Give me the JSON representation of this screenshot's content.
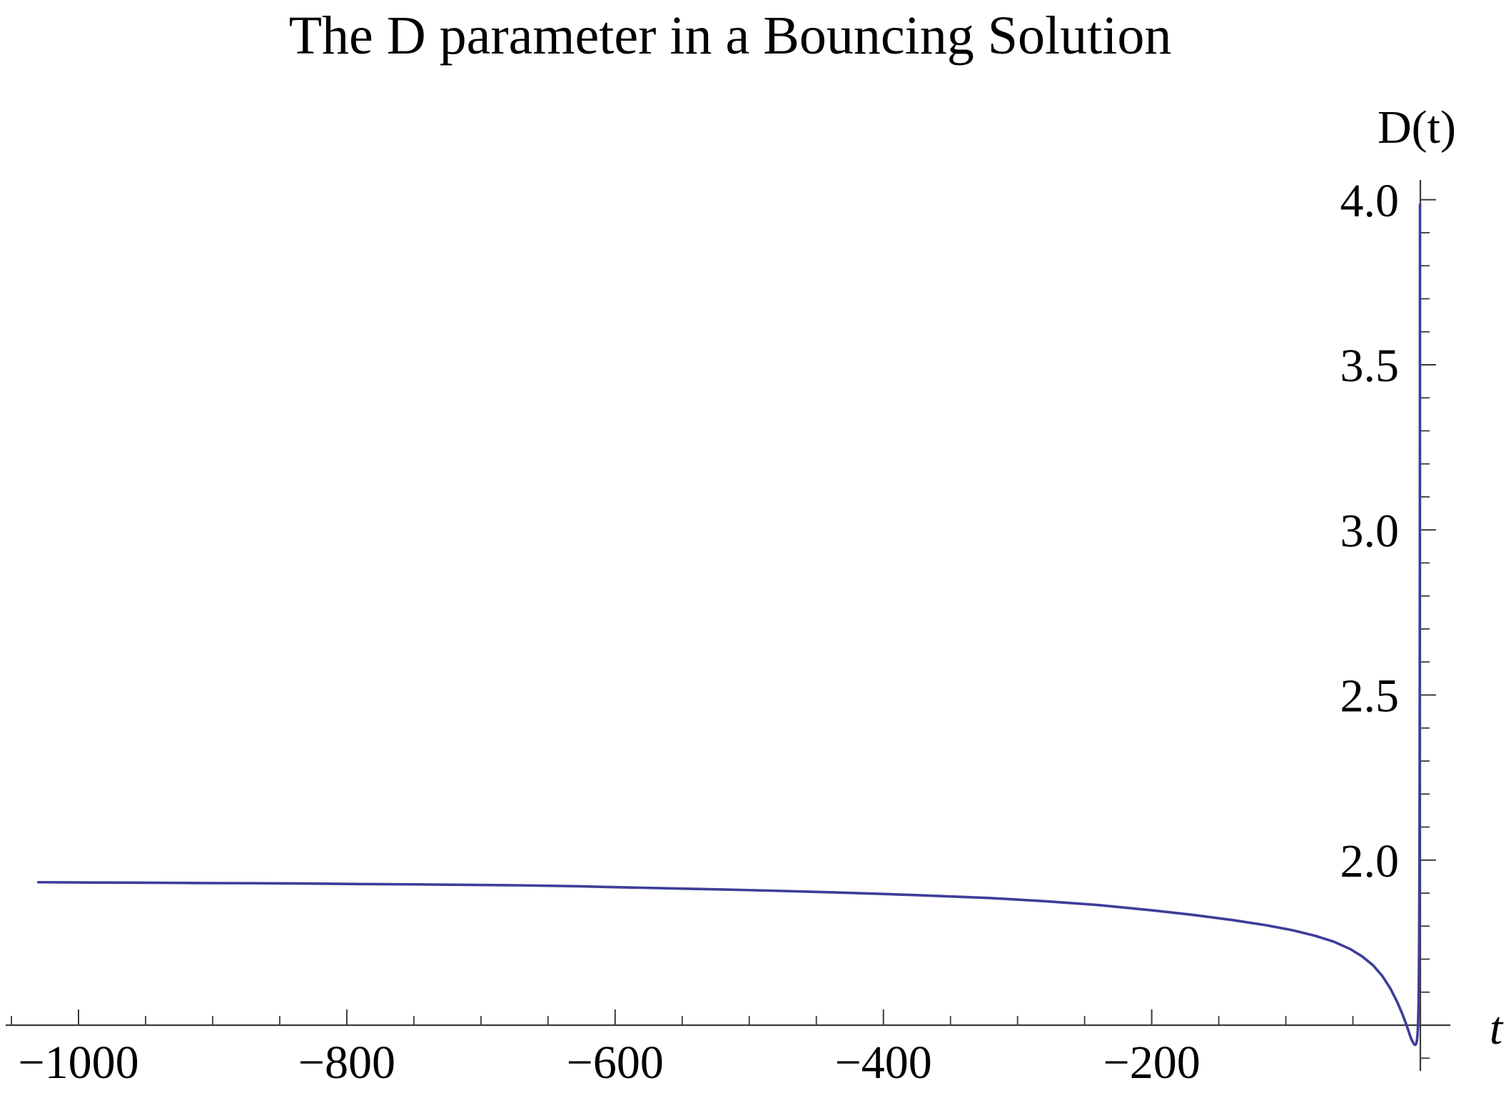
{
  "chart_data": {
    "type": "line",
    "title": "The D parameter in a Bouncing Solution",
    "xlabel": "t",
    "ylabel": "D(t)",
    "grid": false,
    "legend": null,
    "axes_color": "#3a3a3a",
    "x_axis": {
      "range": [
        -1054,
        23
      ],
      "axis_at_D": 1.5,
      "major_ticks": [
        -1000,
        -800,
        -600,
        -400,
        -200
      ],
      "major_labels": [
        "−1000",
        "−800",
        "−600",
        "−400",
        "−200"
      ],
      "minor_start": -1050,
      "minor_end": -50,
      "minor_step": 50
    },
    "y_axis": {
      "range": [
        1.36,
        4.06
      ],
      "axis_at_t": 0,
      "major_ticks": [
        2.0,
        2.5,
        3.0,
        3.5,
        4.0
      ],
      "major_labels": [
        "2.0",
        "2.5",
        "3.0",
        "3.5",
        "4.0"
      ],
      "minor_start": 1.4,
      "minor_end": 4.0,
      "minor_step": 0.1
    },
    "series": [
      {
        "name": "D(t)",
        "color": "#3d3d99",
        "points": [
          [
            -1030,
            1.933
          ],
          [
            -990,
            1.932
          ],
          [
            -950,
            1.9315
          ],
          [
            -910,
            1.9305
          ],
          [
            -870,
            1.93
          ],
          [
            -830,
            1.929
          ],
          [
            -790,
            1.9275
          ],
          [
            -750,
            1.9265
          ],
          [
            -710,
            1.925
          ],
          [
            -670,
            1.9235
          ],
          [
            -630,
            1.921
          ],
          [
            -600,
            1.918
          ],
          [
            -560,
            1.9145
          ],
          [
            -520,
            1.911
          ],
          [
            -480,
            1.907
          ],
          [
            -440,
            1.9025
          ],
          [
            -400,
            1.8975
          ],
          [
            -360,
            1.8915
          ],
          [
            -320,
            1.885
          ],
          [
            -280,
            1.8755
          ],
          [
            -240,
            1.864
          ],
          [
            -200,
            1.848
          ],
          [
            -170,
            1.8345
          ],
          [
            -140,
            1.8185
          ],
          [
            -115,
            1.803
          ],
          [
            -95,
            1.7875
          ],
          [
            -78,
            1.7705
          ],
          [
            -64,
            1.7525
          ],
          [
            -52,
            1.7305
          ],
          [
            -43,
            1.708
          ],
          [
            -35,
            1.6815
          ],
          [
            -28,
            1.6485
          ],
          [
            -22,
            1.6105
          ],
          [
            -17,
            1.5705
          ],
          [
            -13,
            1.5325
          ],
          [
            -10,
            1.5
          ],
          [
            -8,
            1.4755
          ],
          [
            -6.5,
            1.4585
          ],
          [
            -5.2,
            1.4475
          ],
          [
            -4.2,
            1.4415
          ],
          [
            -3.4,
            1.4405
          ],
          [
            -2.8,
            1.4445
          ],
          [
            -2.3,
            1.4535
          ],
          [
            -1.9,
            1.468
          ],
          [
            -1.6,
            1.488
          ],
          [
            -1.35,
            1.515
          ],
          [
            -1.12,
            1.556
          ],
          [
            -0.93,
            1.61
          ],
          [
            -0.77,
            1.677
          ],
          [
            -0.63,
            1.764
          ],
          [
            -0.52,
            1.858
          ],
          [
            -0.42,
            1.972
          ],
          [
            -0.34,
            2.1
          ],
          [
            -0.27,
            2.25
          ],
          [
            -0.21,
            2.42
          ],
          [
            -0.16,
            2.62
          ],
          [
            -0.12,
            2.84
          ],
          [
            -0.088,
            3.07
          ],
          [
            -0.062,
            3.3
          ],
          [
            -0.042,
            3.52
          ],
          [
            -0.027,
            3.71
          ],
          [
            -0.016,
            3.85
          ],
          [
            -0.008,
            3.94
          ],
          [
            -0.003,
            3.985
          ]
        ]
      }
    ]
  }
}
